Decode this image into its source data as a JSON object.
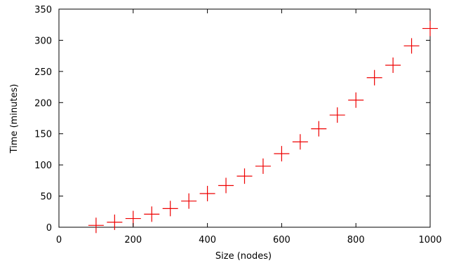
{
  "chart_data": {
    "type": "scatter",
    "xlabel": "Size (nodes)",
    "ylabel": "Time (minutes)",
    "xlim": [
      0,
      1000
    ],
    "ylim": [
      0,
      350
    ],
    "x_ticks": [
      0,
      200,
      400,
      600,
      800,
      1000
    ],
    "y_ticks": [
      0,
      50,
      100,
      150,
      200,
      250,
      300,
      350
    ],
    "grid": false,
    "legend": "none",
    "marker": "plus",
    "marker_color": "#ee0000",
    "series": [
      {
        "points": [
          {
            "x": 100,
            "y": 3
          },
          {
            "x": 150,
            "y": 8
          },
          {
            "x": 200,
            "y": 14
          },
          {
            "x": 250,
            "y": 21
          },
          {
            "x": 300,
            "y": 30
          },
          {
            "x": 350,
            "y": 42
          },
          {
            "x": 400,
            "y": 54
          },
          {
            "x": 450,
            "y": 67
          },
          {
            "x": 500,
            "y": 82
          },
          {
            "x": 550,
            "y": 98
          },
          {
            "x": 600,
            "y": 118
          },
          {
            "x": 650,
            "y": 137
          },
          {
            "x": 700,
            "y": 158
          },
          {
            "x": 750,
            "y": 180
          },
          {
            "x": 800,
            "y": 204
          },
          {
            "x": 850,
            "y": 240
          },
          {
            "x": 900,
            "y": 260
          },
          {
            "x": 950,
            "y": 291
          },
          {
            "x": 1000,
            "y": 319
          }
        ]
      }
    ]
  }
}
